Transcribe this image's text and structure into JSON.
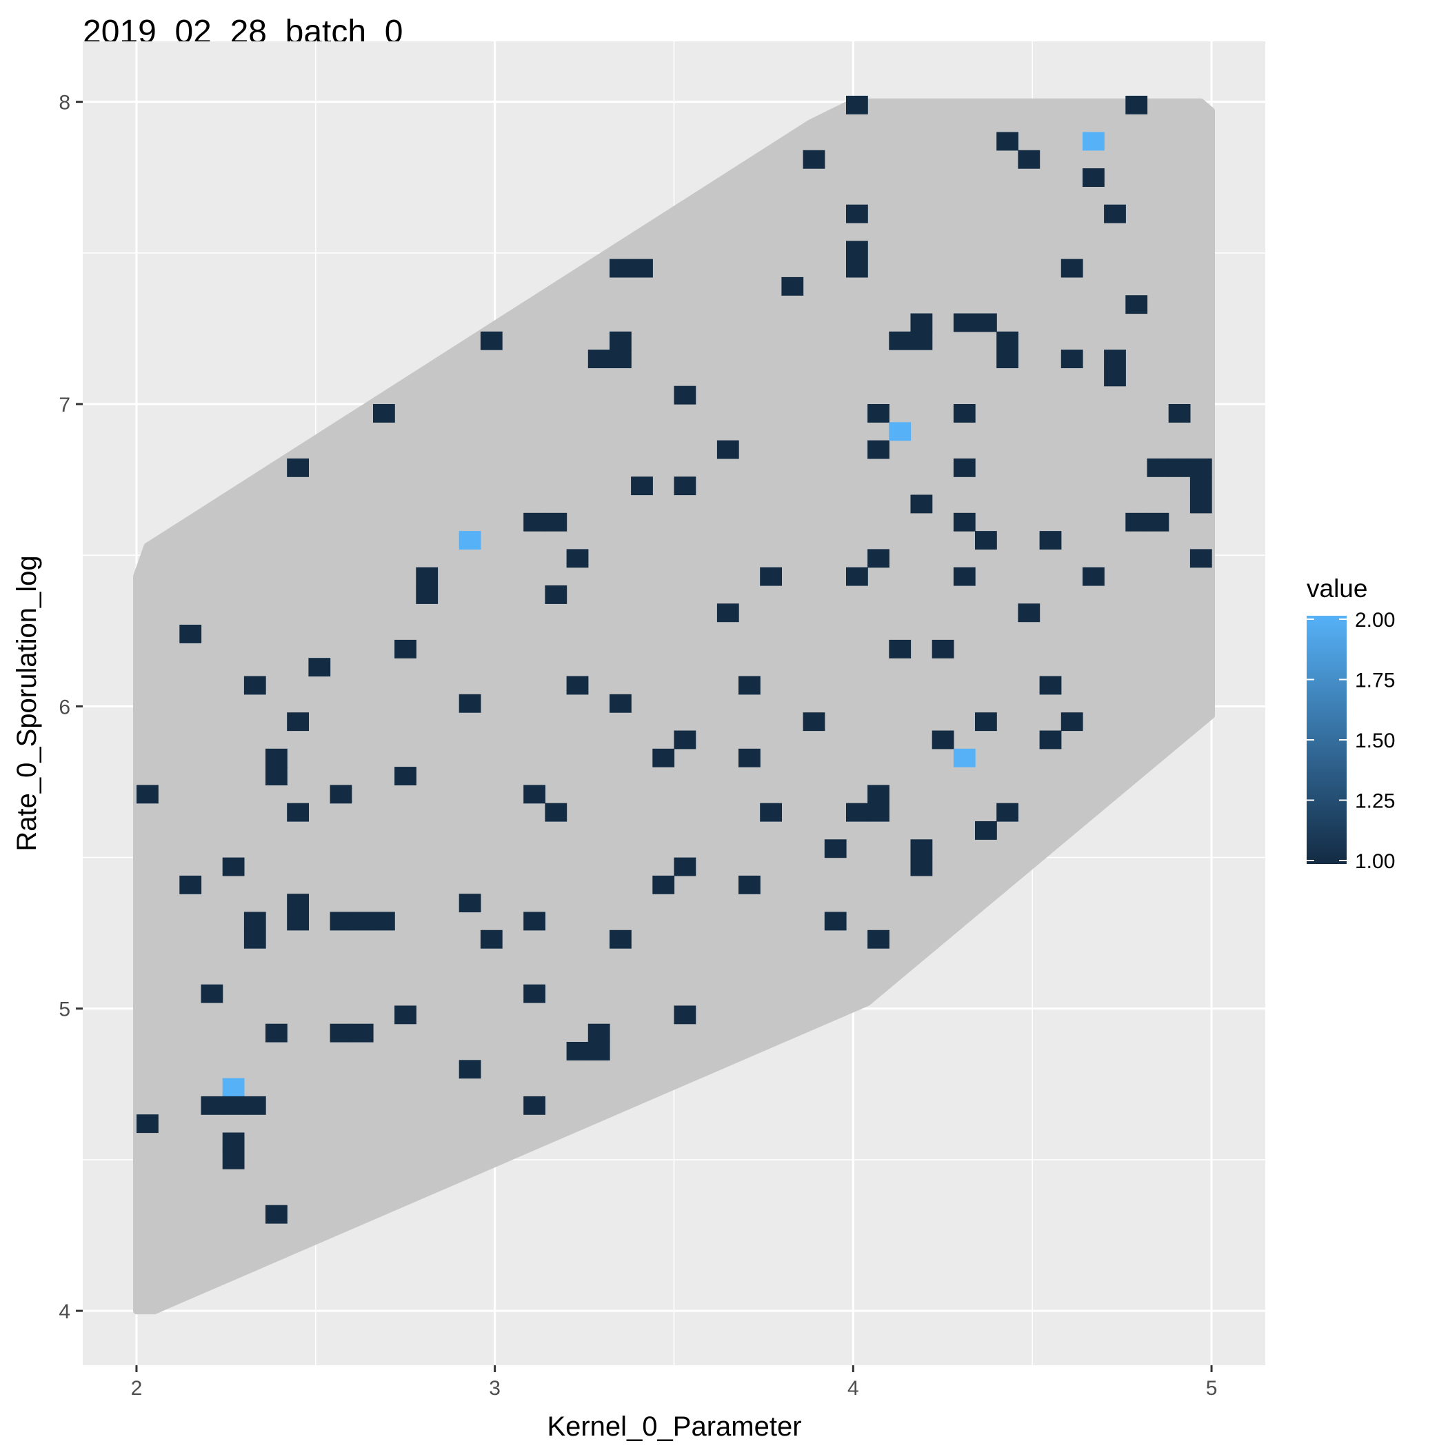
{
  "chart_data": {
    "type": "heatmap",
    "title": "2019_02_28_batch_0",
    "xlabel": "Kernel_0_Parameter",
    "ylabel": "Rate_0_Sporulation_log",
    "xlim": [
      1.85,
      5.15
    ],
    "ylim": [
      3.82,
      8.2
    ],
    "x_ticks": [
      2,
      3,
      4,
      5
    ],
    "x_tick_labels": [
      "2",
      "3",
      "4",
      "5"
    ],
    "y_ticks": [
      4,
      5,
      6,
      7,
      8
    ],
    "y_tick_labels": [
      "4",
      "5",
      "6",
      "7",
      "8"
    ],
    "grid": true,
    "cell_width": 0.06,
    "cell_height": 0.06,
    "legend": {
      "title": "value",
      "position": "right",
      "range": [
        1.0,
        2.0
      ],
      "ticks": [
        1.0,
        1.25,
        1.5,
        1.75,
        2.0
      ],
      "tick_labels": [
        "1.00",
        "1.25",
        "1.50",
        "1.75",
        "2.00"
      ],
      "low_color": "#132B43",
      "high_color": "#56B1F7"
    },
    "region_polygon": [
      [
        2.0,
        4.0
      ],
      [
        2.05,
        4.0
      ],
      [
        4.04,
        5.02
      ],
      [
        5.0,
        5.97
      ],
      [
        5.0,
        7.97
      ],
      [
        4.97,
        8.0
      ],
      [
        4.0,
        8.0
      ],
      [
        3.88,
        7.93
      ],
      [
        2.03,
        6.53
      ],
      [
        2.0,
        6.43
      ]
    ],
    "region_color": "#c6c6c6",
    "cells": [
      [
        2.03,
        5.71,
        1
      ],
      [
        2.03,
        4.62,
        1
      ],
      [
        2.15,
        6.24,
        1
      ],
      [
        2.15,
        5.41,
        1
      ],
      [
        2.21,
        5.05,
        1
      ],
      [
        2.27,
        4.74,
        2
      ],
      [
        2.27,
        4.68,
        1
      ],
      [
        2.21,
        4.68,
        1
      ],
      [
        2.33,
        4.68,
        1
      ],
      [
        2.27,
        4.56,
        1
      ],
      [
        2.27,
        4.5,
        1
      ],
      [
        2.27,
        5.47,
        1
      ],
      [
        2.33,
        5.29,
        1
      ],
      [
        2.33,
        5.23,
        1
      ],
      [
        2.33,
        6.07,
        1
      ],
      [
        2.39,
        5.83,
        1
      ],
      [
        2.39,
        5.77,
        1
      ],
      [
        2.39,
        4.92,
        1
      ],
      [
        2.39,
        4.32,
        1
      ],
      [
        2.45,
        6.79,
        1
      ],
      [
        2.45,
        5.95,
        1
      ],
      [
        2.45,
        5.65,
        1
      ],
      [
        2.45,
        5.35,
        1
      ],
      [
        2.45,
        5.29,
        1
      ],
      [
        2.51,
        6.13,
        1
      ],
      [
        2.57,
        5.71,
        1
      ],
      [
        2.57,
        5.29,
        1
      ],
      [
        2.63,
        5.29,
        1
      ],
      [
        2.69,
        5.29,
        1
      ],
      [
        2.57,
        4.92,
        1
      ],
      [
        2.63,
        4.92,
        1
      ],
      [
        2.69,
        6.97,
        1
      ],
      [
        2.75,
        6.19,
        1
      ],
      [
        2.75,
        5.77,
        1
      ],
      [
        2.75,
        4.98,
        1
      ],
      [
        2.81,
        6.43,
        1
      ],
      [
        2.81,
        6.37,
        1
      ],
      [
        2.93,
        6.55,
        2
      ],
      [
        2.93,
        6.01,
        1
      ],
      [
        2.93,
        5.35,
        1
      ],
      [
        2.93,
        4.8,
        1
      ],
      [
        2.99,
        7.21,
        1
      ],
      [
        2.99,
        5.23,
        1
      ],
      [
        3.11,
        6.61,
        1
      ],
      [
        3.17,
        6.61,
        1
      ],
      [
        3.11,
        5.71,
        1
      ],
      [
        3.17,
        5.65,
        1
      ],
      [
        3.11,
        5.29,
        1
      ],
      [
        3.11,
        5.05,
        1
      ],
      [
        3.11,
        4.68,
        1
      ],
      [
        3.17,
        6.37,
        1
      ],
      [
        3.23,
        6.49,
        1
      ],
      [
        3.23,
        6.07,
        1
      ],
      [
        3.23,
        4.86,
        1
      ],
      [
        3.29,
        4.86,
        1
      ],
      [
        3.29,
        4.92,
        1
      ],
      [
        3.29,
        7.15,
        1
      ],
      [
        3.35,
        7.15,
        1
      ],
      [
        3.35,
        7.21,
        1
      ],
      [
        3.35,
        7.45,
        1
      ],
      [
        3.41,
        7.45,
        1
      ],
      [
        3.35,
        6.01,
        1
      ],
      [
        3.35,
        5.23,
        1
      ],
      [
        3.41,
        6.73,
        1
      ],
      [
        3.47,
        5.83,
        1
      ],
      [
        3.47,
        5.41,
        1
      ],
      [
        3.53,
        7.03,
        1
      ],
      [
        3.53,
        6.73,
        1
      ],
      [
        3.53,
        5.89,
        1
      ],
      [
        3.53,
        5.47,
        1
      ],
      [
        3.53,
        4.98,
        1
      ],
      [
        3.65,
        6.85,
        1
      ],
      [
        3.65,
        6.31,
        1
      ],
      [
        3.71,
        6.07,
        1
      ],
      [
        3.71,
        5.83,
        1
      ],
      [
        3.71,
        5.41,
        1
      ],
      [
        3.77,
        6.43,
        1
      ],
      [
        3.77,
        5.65,
        1
      ],
      [
        3.83,
        7.39,
        1
      ],
      [
        3.89,
        7.81,
        1
      ],
      [
        3.89,
        5.95,
        1
      ],
      [
        3.95,
        5.53,
        1
      ],
      [
        3.95,
        5.29,
        1
      ],
      [
        4.01,
        7.99,
        1
      ],
      [
        4.01,
        7.63,
        1
      ],
      [
        4.01,
        7.51,
        1
      ],
      [
        4.01,
        7.45,
        1
      ],
      [
        4.01,
        6.43,
        1
      ],
      [
        4.01,
        5.65,
        1
      ],
      [
        4.07,
        6.97,
        1
      ],
      [
        4.07,
        6.85,
        1
      ],
      [
        4.07,
        6.49,
        1
      ],
      [
        4.07,
        5.71,
        1
      ],
      [
        4.07,
        5.65,
        1
      ],
      [
        4.07,
        5.23,
        1
      ],
      [
        4.13,
        6.91,
        2
      ],
      [
        4.13,
        7.21,
        1
      ],
      [
        4.19,
        7.21,
        1
      ],
      [
        4.19,
        7.27,
        1
      ],
      [
        4.13,
        6.19,
        1
      ],
      [
        4.19,
        6.67,
        1
      ],
      [
        4.19,
        5.53,
        1
      ],
      [
        4.19,
        5.47,
        1
      ],
      [
        4.25,
        6.19,
        1
      ],
      [
        4.25,
        5.89,
        1
      ],
      [
        4.31,
        7.27,
        1
      ],
      [
        4.37,
        7.27,
        1
      ],
      [
        4.31,
        6.97,
        1
      ],
      [
        4.31,
        6.79,
        1
      ],
      [
        4.31,
        6.61,
        1
      ],
      [
        4.31,
        6.43,
        1
      ],
      [
        4.31,
        5.83,
        2
      ],
      [
        4.37,
        6.55,
        1
      ],
      [
        4.37,
        5.95,
        1
      ],
      [
        4.37,
        5.59,
        1
      ],
      [
        4.43,
        7.87,
        1
      ],
      [
        4.43,
        7.21,
        1
      ],
      [
        4.43,
        7.15,
        1
      ],
      [
        4.43,
        5.65,
        1
      ],
      [
        4.49,
        7.81,
        1
      ],
      [
        4.49,
        6.31,
        1
      ],
      [
        4.55,
        6.55,
        1
      ],
      [
        4.55,
        6.07,
        1
      ],
      [
        4.55,
        5.89,
        1
      ],
      [
        4.61,
        7.45,
        1
      ],
      [
        4.61,
        7.15,
        1
      ],
      [
        4.61,
        5.95,
        1
      ],
      [
        4.67,
        7.87,
        2
      ],
      [
        4.67,
        7.75,
        1
      ],
      [
        4.67,
        6.43,
        1
      ],
      [
        4.73,
        7.63,
        1
      ],
      [
        4.73,
        7.15,
        1
      ],
      [
        4.73,
        7.09,
        1
      ],
      [
        4.79,
        7.99,
        1
      ],
      [
        4.79,
        7.33,
        1
      ],
      [
        4.79,
        6.61,
        1
      ],
      [
        4.85,
        6.61,
        1
      ],
      [
        4.85,
        6.79,
        1
      ],
      [
        4.91,
        6.79,
        1
      ],
      [
        4.97,
        6.79,
        1
      ],
      [
        4.91,
        6.97,
        1
      ],
      [
        4.97,
        6.73,
        1
      ],
      [
        4.97,
        6.67,
        1
      ],
      [
        4.97,
        6.49,
        1
      ]
    ]
  }
}
